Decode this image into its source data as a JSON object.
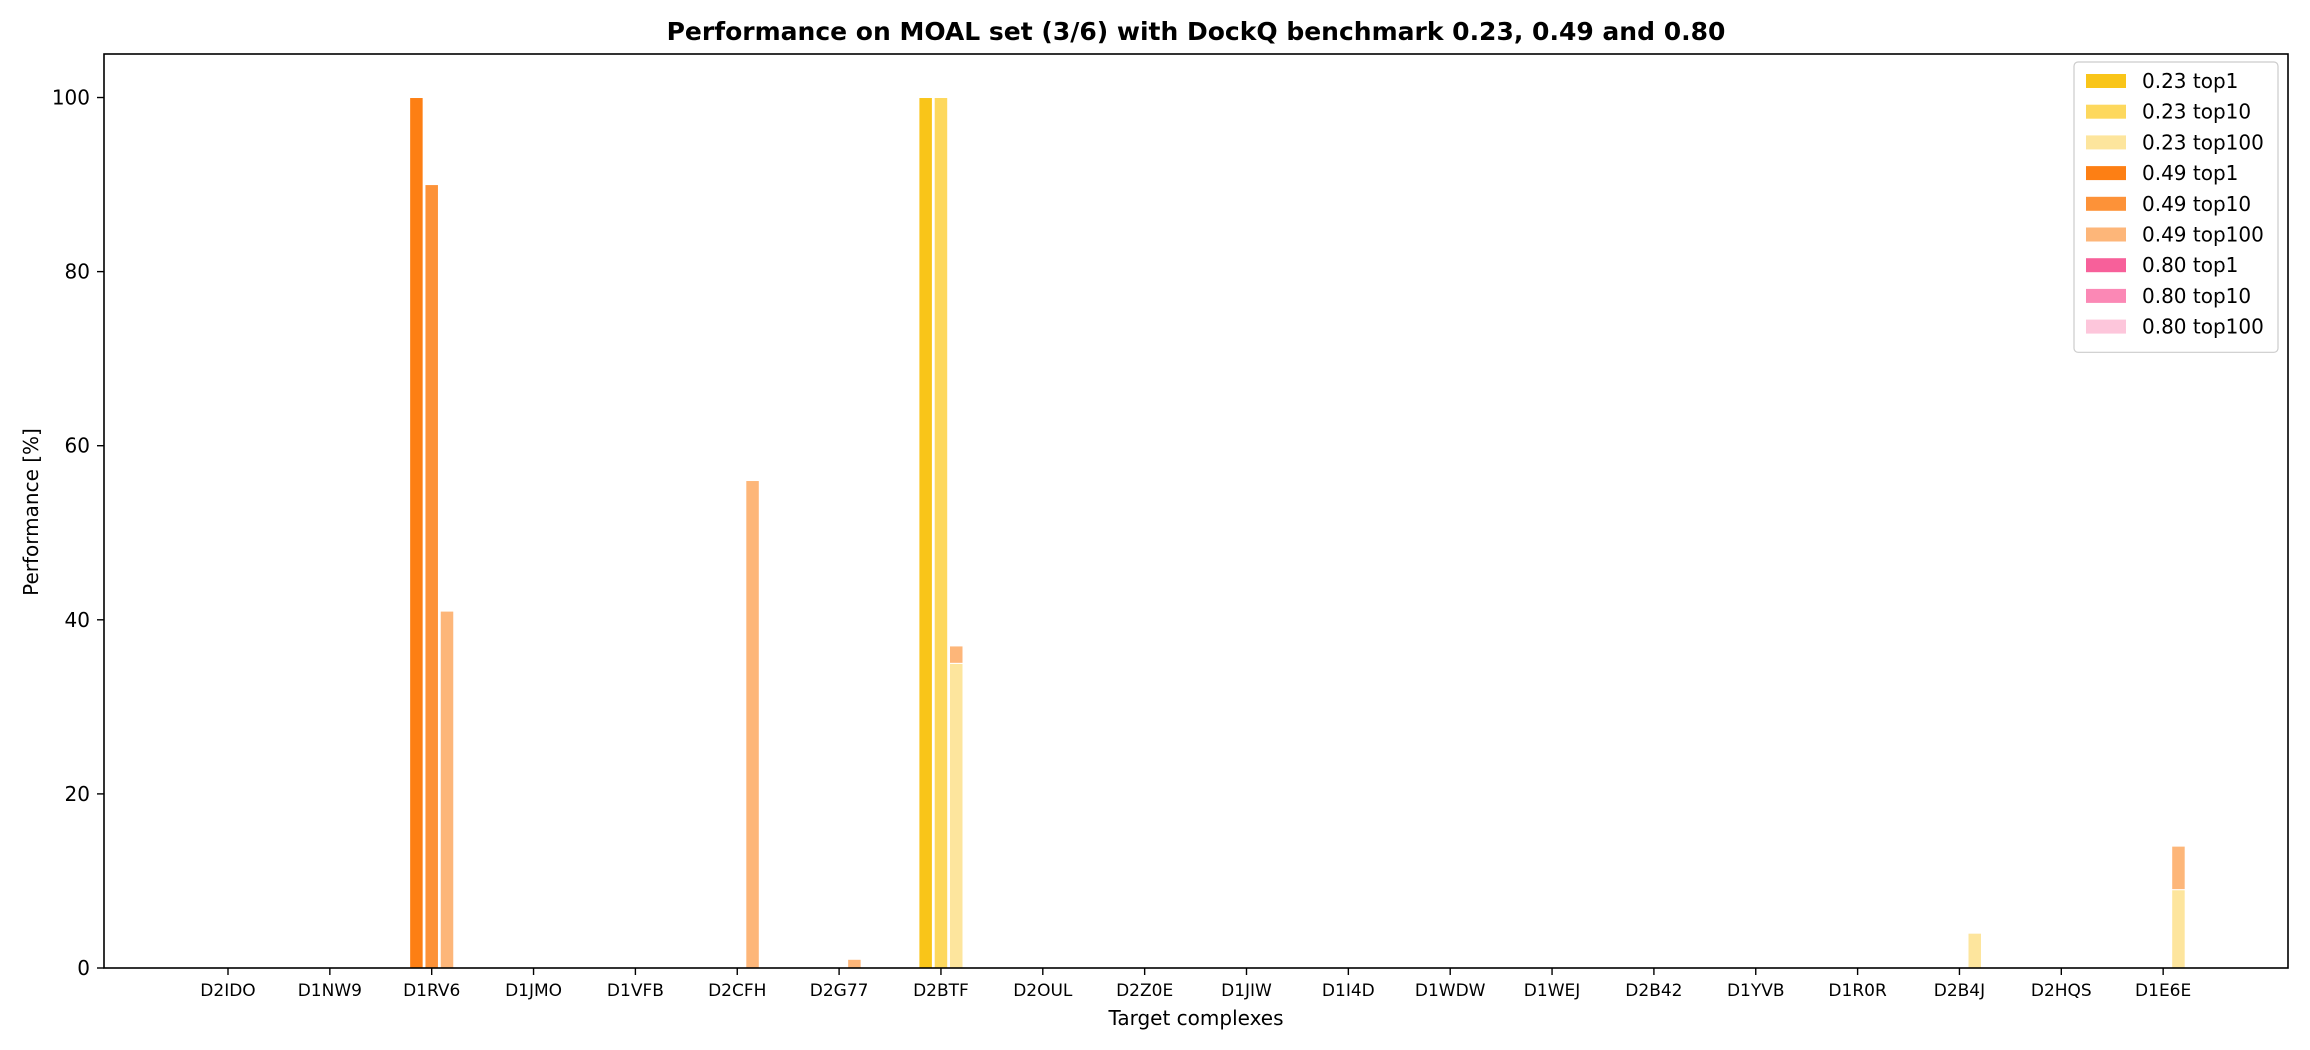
{
  "chart_data": {
    "type": "bar",
    "title": "Performance on MOAL set (3/6) with DockQ benchmark 0.23, 0.49 and 0.80",
    "xlabel": "Target complexes",
    "ylabel": "Performance [%]",
    "ylim": [
      0,
      105
    ],
    "yticks": [
      0,
      20,
      40,
      60,
      80,
      100
    ],
    "grid": false,
    "legend_position": "top-right",
    "categories": [
      "D2IDO",
      "D1NW9",
      "D1RV6",
      "D1JMO",
      "D1VFB",
      "D2CFH",
      "D2G77",
      "D2BTF",
      "D2OUL",
      "D2Z0E",
      "D1JIW",
      "D1I4D",
      "D1WDW",
      "D1WEJ",
      "D2B42",
      "D1YVB",
      "D1R0R",
      "D2B4J",
      "D2HQS",
      "D1E6E"
    ],
    "groups": [
      "top1",
      "top10",
      "top100"
    ],
    "series": [
      {
        "name": "0.23 top1",
        "group": "top1",
        "color": "#f9c519",
        "values": [
          0,
          0,
          0,
          0,
          0,
          0,
          0,
          100,
          0,
          0,
          0,
          0,
          0,
          0,
          0,
          0,
          0,
          0,
          0,
          0
        ]
      },
      {
        "name": "0.23 top10",
        "group": "top10",
        "color": "#fdd85d",
        "values": [
          0,
          0,
          0,
          0,
          0,
          0,
          0,
          100,
          0,
          0,
          0,
          0,
          0,
          0,
          0,
          0,
          0,
          0,
          0,
          0
        ]
      },
      {
        "name": "0.23 top100",
        "group": "top100",
        "color": "#fde59d",
        "values": [
          0,
          0,
          0,
          0,
          0,
          0,
          0,
          35,
          0,
          0,
          0,
          0,
          0,
          0,
          0,
          0,
          0,
          4,
          0,
          9
        ]
      },
      {
        "name": "0.49 top1",
        "group": "top1",
        "color": "#fd7f14",
        "values": [
          0,
          0,
          100,
          0,
          0,
          0,
          0,
          0,
          0,
          0,
          0,
          0,
          0,
          0,
          0,
          0,
          0,
          0,
          0,
          0
        ]
      },
      {
        "name": "0.49 top10",
        "group": "top10",
        "color": "#fd9238",
        "values": [
          0,
          0,
          90,
          0,
          0,
          0,
          0,
          0,
          0,
          0,
          0,
          0,
          0,
          0,
          0,
          0,
          0,
          0,
          0,
          0
        ]
      },
      {
        "name": "0.49 top100",
        "group": "top100",
        "color": "#fdb679",
        "values": [
          0,
          0,
          41,
          0,
          0,
          56,
          1,
          2,
          0,
          0,
          0,
          0,
          0,
          0,
          0,
          0,
          0,
          0,
          0,
          5
        ]
      },
      {
        "name": "0.80 top1",
        "group": "top1",
        "color": "#f7609a",
        "values": [
          0,
          0,
          0,
          0,
          0,
          0,
          0,
          0,
          0,
          0,
          0,
          0,
          0,
          0,
          0,
          0,
          0,
          0,
          0,
          0
        ]
      },
      {
        "name": "0.80 top10",
        "group": "top10",
        "color": "#fb88b5",
        "values": [
          0,
          0,
          0,
          0,
          0,
          0,
          0,
          0,
          0,
          0,
          0,
          0,
          0,
          0,
          0,
          0,
          0,
          0,
          0,
          0
        ]
      },
      {
        "name": "0.80 top100",
        "group": "top100",
        "color": "#fdc6db",
        "values": [
          0,
          0,
          0,
          0,
          0,
          0,
          0,
          0,
          0,
          0,
          0,
          0,
          0,
          0,
          0,
          0,
          0,
          0,
          0,
          0
        ]
      }
    ]
  }
}
